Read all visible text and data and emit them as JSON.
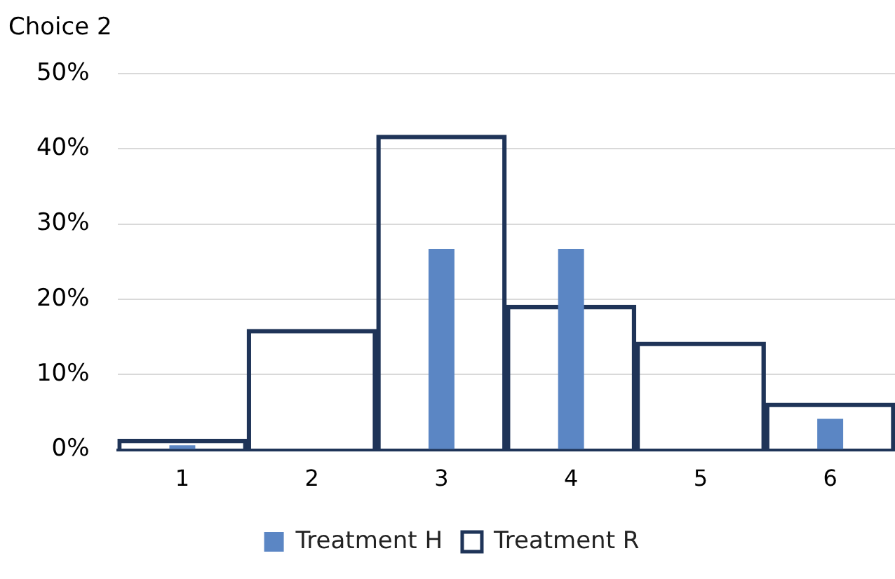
{
  "chart_data": {
    "type": "bar",
    "title": "Choice 2",
    "categories": [
      "1",
      "2",
      "3",
      "4",
      "5",
      "6"
    ],
    "series": [
      {
        "name": "Treatment H",
        "color": "#5b86c4",
        "values": [
          0.6,
          0,
          26.7,
          26.7,
          0,
          4.1
        ]
      },
      {
        "name": "Treatment R",
        "color": "#1f3458",
        "values": [
          1.4,
          16.0,
          41.8,
          19.2,
          14.3,
          6.2
        ]
      }
    ],
    "ylim": [
      0,
      50
    ],
    "yticks": [
      {
        "value": 0,
        "label": "0%"
      },
      {
        "value": 10,
        "label": "10%"
      },
      {
        "value": 20,
        "label": "20%"
      },
      {
        "value": 30,
        "label": "30%"
      },
      {
        "value": 40,
        "label": "40%"
      },
      {
        "value": 50,
        "label": "50%"
      }
    ],
    "grid": "y",
    "legend": "bottom"
  }
}
